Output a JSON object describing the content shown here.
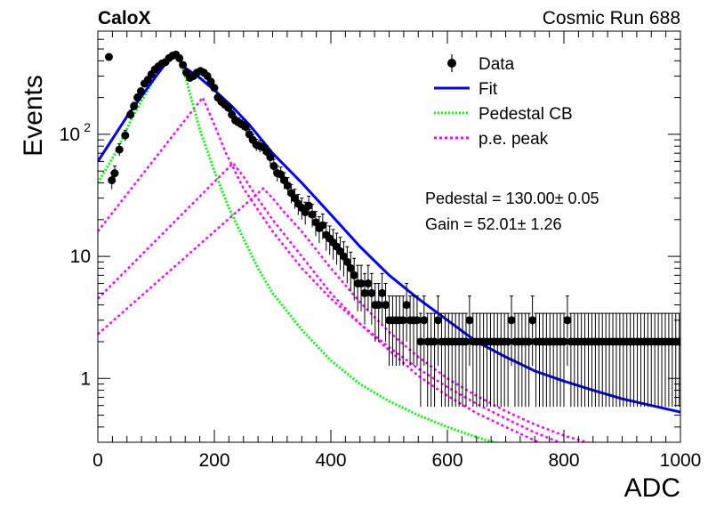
{
  "header": {
    "brand": "CaloX",
    "run_label": "Cosmic Run 688"
  },
  "results": {
    "pedestal": "Pedestal = 130.00± 0.05",
    "gain": "Gain = 52.01± 1.26"
  },
  "legend": {
    "placement": "top-right",
    "entries": [
      {
        "key": "data",
        "label": "Data",
        "color": "#000000"
      },
      {
        "key": "fit",
        "label": "Fit",
        "color": "#0000ff"
      },
      {
        "key": "pedestal",
        "label": "Pedestal CB",
        "color": "#00ff00"
      },
      {
        "key": "pe",
        "label": "p.e. peak",
        "color": "#ff00ff"
      }
    ]
  },
  "colors": {
    "data": "#000000",
    "fit": "#0000ff",
    "pedestal": "#00ff00",
    "pe_peak": "#ff00ff"
  },
  "chart_data": {
    "type": "scatter",
    "xlabel": "ADC",
    "ylabel": "Events",
    "xlim": [
      0,
      1000
    ],
    "ylim": [
      0.3,
      700
    ],
    "yscale": "log",
    "grid": false,
    "x_ticks": [
      {
        "value": 0,
        "label": "0"
      },
      {
        "value": 200,
        "label": "200"
      },
      {
        "value": 400,
        "label": "400"
      },
      {
        "value": 600,
        "label": "600"
      },
      {
        "value": 800,
        "label": "800"
      },
      {
        "value": 1000,
        "label": "1000"
      }
    ],
    "y_ticks": [
      {
        "value": 1,
        "label": "1"
      },
      {
        "value": 10,
        "label": "10"
      },
      {
        "value": 100,
        "label": "10",
        "sup": "2"
      }
    ],
    "data_points": [
      [
        19,
        430
      ],
      [
        24,
        42
      ],
      [
        29,
        48
      ],
      [
        37,
        75
      ],
      [
        47,
        98
      ],
      [
        56,
        145
      ],
      [
        62,
        170
      ],
      [
        68,
        200
      ],
      [
        74,
        225
      ],
      [
        80,
        260
      ],
      [
        86,
        280
      ],
      [
        92,
        310
      ],
      [
        98,
        340
      ],
      [
        104,
        360
      ],
      [
        110,
        380
      ],
      [
        116,
        390
      ],
      [
        122,
        420
      ],
      [
        128,
        440
      ],
      [
        134,
        450
      ],
      [
        140,
        420
      ],
      [
        146,
        370
      ],
      [
        152,
        320
      ],
      [
        158,
        290
      ],
      [
        164,
        300
      ],
      [
        170,
        320
      ],
      [
        176,
        330
      ],
      [
        182,
        320
      ],
      [
        188,
        300
      ],
      [
        194,
        270
      ],
      [
        200,
        240
      ],
      [
        206,
        200
      ],
      [
        212,
        185
      ],
      [
        218,
        175
      ],
      [
        224,
        165
      ],
      [
        230,
        145
      ],
      [
        236,
        130
      ],
      [
        242,
        125
      ],
      [
        248,
        120
      ],
      [
        254,
        115
      ],
      [
        260,
        100
      ],
      [
        266,
        90
      ],
      [
        272,
        82
      ],
      [
        278,
        80
      ],
      [
        284,
        78
      ],
      [
        290,
        72
      ],
      [
        296,
        65
      ],
      [
        302,
        55
      ],
      [
        308,
        48
      ],
      [
        314,
        47
      ],
      [
        320,
        42
      ],
      [
        326,
        38
      ],
      [
        332,
        33
      ],
      [
        338,
        30
      ],
      [
        344,
        27
      ],
      [
        350,
        25
      ],
      [
        356,
        23
      ],
      [
        362,
        26
      ],
      [
        368,
        22
      ],
      [
        374,
        19
      ],
      [
        380,
        17
      ],
      [
        386,
        18
      ],
      [
        392,
        15
      ],
      [
        398,
        14
      ],
      [
        404,
        13
      ],
      [
        410,
        12
      ],
      [
        416,
        11
      ],
      [
        422,
        10
      ],
      [
        428,
        9
      ],
      [
        434,
        8
      ],
      [
        440,
        7
      ],
      [
        446,
        6
      ],
      [
        452,
        6
      ],
      [
        458,
        5
      ],
      [
        464,
        6
      ],
      [
        470,
        5
      ],
      [
        476,
        4
      ],
      [
        482,
        4
      ],
      [
        488,
        5
      ],
      [
        494,
        4
      ],
      [
        500,
        3
      ],
      [
        506,
        3
      ],
      [
        512,
        3
      ],
      [
        518,
        3
      ],
      [
        524,
        3
      ],
      [
        530,
        4
      ],
      [
        536,
        3
      ],
      [
        542,
        3
      ],
      [
        548,
        3
      ],
      [
        554,
        2
      ],
      [
        560,
        3
      ],
      [
        566,
        2
      ],
      [
        572,
        2
      ],
      [
        578,
        2
      ],
      [
        584,
        3
      ],
      [
        590,
        2
      ],
      [
        596,
        2
      ],
      [
        602,
        2
      ],
      [
        608,
        2
      ],
      [
        614,
        2
      ],
      [
        620,
        2
      ],
      [
        626,
        2
      ],
      [
        632,
        2
      ],
      [
        638,
        3
      ],
      [
        644,
        2
      ],
      [
        650,
        2
      ],
      [
        656,
        2
      ],
      [
        662,
        2
      ],
      [
        668,
        2
      ],
      [
        674,
        2
      ],
      [
        680,
        2
      ],
      [
        686,
        2
      ],
      [
        692,
        2
      ],
      [
        698,
        2
      ],
      [
        704,
        2
      ],
      [
        710,
        3
      ],
      [
        716,
        2
      ],
      [
        722,
        2
      ],
      [
        728,
        2
      ],
      [
        734,
        2
      ],
      [
        740,
        2
      ],
      [
        746,
        3
      ],
      [
        752,
        2
      ],
      [
        758,
        2
      ],
      [
        764,
        2
      ],
      [
        770,
        2
      ],
      [
        776,
        2
      ],
      [
        782,
        2
      ],
      [
        788,
        2
      ],
      [
        794,
        2
      ],
      [
        800,
        2
      ],
      [
        806,
        3
      ],
      [
        812,
        2
      ],
      [
        818,
        2
      ],
      [
        824,
        2
      ],
      [
        830,
        2
      ],
      [
        836,
        2
      ],
      [
        842,
        2
      ],
      [
        848,
        2
      ],
      [
        854,
        2
      ],
      [
        860,
        2
      ],
      [
        866,
        2
      ],
      [
        872,
        2
      ],
      [
        878,
        2
      ],
      [
        884,
        2
      ],
      [
        890,
        2
      ],
      [
        896,
        2
      ],
      [
        902,
        2
      ],
      [
        908,
        2
      ],
      [
        914,
        2
      ],
      [
        920,
        2
      ],
      [
        926,
        2
      ],
      [
        932,
        2
      ],
      [
        938,
        2
      ],
      [
        944,
        2
      ],
      [
        950,
        2
      ],
      [
        956,
        2
      ],
      [
        962,
        2
      ],
      [
        968,
        2
      ],
      [
        974,
        2
      ],
      [
        980,
        2
      ],
      [
        986,
        2
      ],
      [
        992,
        2
      ],
      [
        998,
        2
      ]
    ],
    "fit_curve": [
      [
        0,
        60
      ],
      [
        50,
        140
      ],
      [
        100,
        300
      ],
      [
        130,
        460
      ],
      [
        150,
        350
      ],
      [
        175,
        290
      ],
      [
        200,
        230
      ],
      [
        230,
        170
      ],
      [
        260,
        120
      ],
      [
        300,
        70
      ],
      [
        350,
        40
      ],
      [
        400,
        22
      ],
      [
        450,
        12
      ],
      [
        500,
        7
      ],
      [
        550,
        4.5
      ],
      [
        600,
        3.0
      ],
      [
        650,
        2.0
      ],
      [
        700,
        1.5
      ],
      [
        750,
        1.15
      ],
      [
        800,
        0.95
      ],
      [
        850,
        0.8
      ],
      [
        900,
        0.68
      ],
      [
        950,
        0.6
      ],
      [
        1000,
        0.53
      ]
    ],
    "pedestal_curve": [
      [
        0,
        40
      ],
      [
        30,
        70
      ],
      [
        60,
        140
      ],
      [
        90,
        250
      ],
      [
        115,
        380
      ],
      [
        130,
        450
      ],
      [
        140,
        400
      ],
      [
        150,
        300
      ],
      [
        160,
        200
      ],
      [
        175,
        110
      ],
      [
        200,
        50
      ],
      [
        225,
        25
      ],
      [
        250,
        14
      ],
      [
        275,
        8
      ],
      [
        300,
        5
      ],
      [
        350,
        2.5
      ],
      [
        400,
        1.4
      ],
      [
        450,
        0.9
      ],
      [
        500,
        0.65
      ],
      [
        550,
        0.5
      ],
      [
        600,
        0.4
      ],
      [
        650,
        0.33
      ],
      [
        700,
        0.28
      ]
    ],
    "pe_peaks": [
      {
        "mu": 180,
        "peak": 200,
        "start": 16,
        "tail": [
          [
            180,
            200
          ],
          [
            200,
            120
          ],
          [
            220,
            70
          ],
          [
            250,
            36
          ],
          [
            300,
            16
          ],
          [
            350,
            8
          ],
          [
            400,
            4.5
          ],
          [
            450,
            2.8
          ],
          [
            500,
            1.8
          ],
          [
            550,
            1.2
          ],
          [
            600,
            0.85
          ],
          [
            650,
            0.62
          ],
          [
            700,
            0.47
          ],
          [
            750,
            0.36
          ],
          [
            800,
            0.29
          ]
        ]
      },
      {
        "mu": 232,
        "peak": 58,
        "start": 4.5,
        "tail": [
          [
            232,
            58
          ],
          [
            250,
            45
          ],
          [
            270,
            32
          ],
          [
            300,
            20
          ],
          [
            350,
            10
          ],
          [
            400,
            5
          ],
          [
            450,
            2.8
          ],
          [
            500,
            1.7
          ],
          [
            550,
            1.05
          ],
          [
            600,
            0.72
          ],
          [
            650,
            0.52
          ],
          [
            700,
            0.4
          ],
          [
            750,
            0.31
          ],
          [
            800,
            0.25
          ]
        ]
      },
      {
        "mu": 284,
        "peak": 36,
        "start": 2.3,
        "tail": [
          [
            284,
            36
          ],
          [
            300,
            30
          ],
          [
            320,
            23
          ],
          [
            350,
            16
          ],
          [
            400,
            8
          ],
          [
            450,
            4.2
          ],
          [
            500,
            2.4
          ],
          [
            550,
            1.5
          ],
          [
            600,
            1.0
          ],
          [
            650,
            0.72
          ],
          [
            700,
            0.54
          ],
          [
            750,
            0.42
          ],
          [
            800,
            0.34
          ],
          [
            850,
            0.29
          ]
        ]
      }
    ]
  }
}
